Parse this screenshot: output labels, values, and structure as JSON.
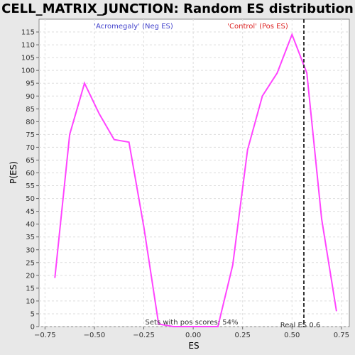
{
  "chart_data": {
    "type": "line",
    "title": "CELL_MATRIX_JUNCTION: Random ES distribution",
    "xlabel": "ES",
    "ylabel": "P(ES)",
    "xlim": [
      -0.78,
      0.79
    ],
    "ylim": [
      0,
      120
    ],
    "x_ticks": [
      -0.75,
      -0.5,
      -0.25,
      0.0,
      0.25,
      0.5,
      0.75
    ],
    "x_tick_labels": [
      "−0.75",
      "−0.50",
      "−0.25",
      "0.00",
      "0.25",
      "0.50",
      "0.75"
    ],
    "y_ticks": [
      0,
      5,
      10,
      15,
      20,
      25,
      30,
      35,
      40,
      45,
      50,
      55,
      60,
      65,
      70,
      75,
      80,
      85,
      90,
      95,
      100,
      105,
      110,
      115
    ],
    "grid": true,
    "line_color": "#ff44ff",
    "series": [
      {
        "x": [
          -0.7,
          -0.625,
          -0.55,
          -0.475,
          -0.4,
          -0.325,
          -0.25,
          -0.175,
          -0.1,
          -0.025,
          0.05,
          0.125,
          0.2,
          0.275,
          0.35,
          0.425,
          0.5,
          0.575,
          0.65,
          0.725
        ],
        "values": [
          19,
          75,
          95,
          83,
          73,
          72,
          39,
          1,
          0,
          0,
          0,
          0,
          24,
          69,
          90,
          99,
          114,
          99,
          42,
          6
        ]
      }
    ],
    "real_es": 0.56,
    "real_es_label": "Real ES 0.6",
    "neg_label": "'Acromegaly' (Neg ES)",
    "neg_color": "#4444cc",
    "pos_label": "'Control' (Pos ES)",
    "pos_color": "#dd2222",
    "footnote": "Sets with pos scores: 54%"
  }
}
